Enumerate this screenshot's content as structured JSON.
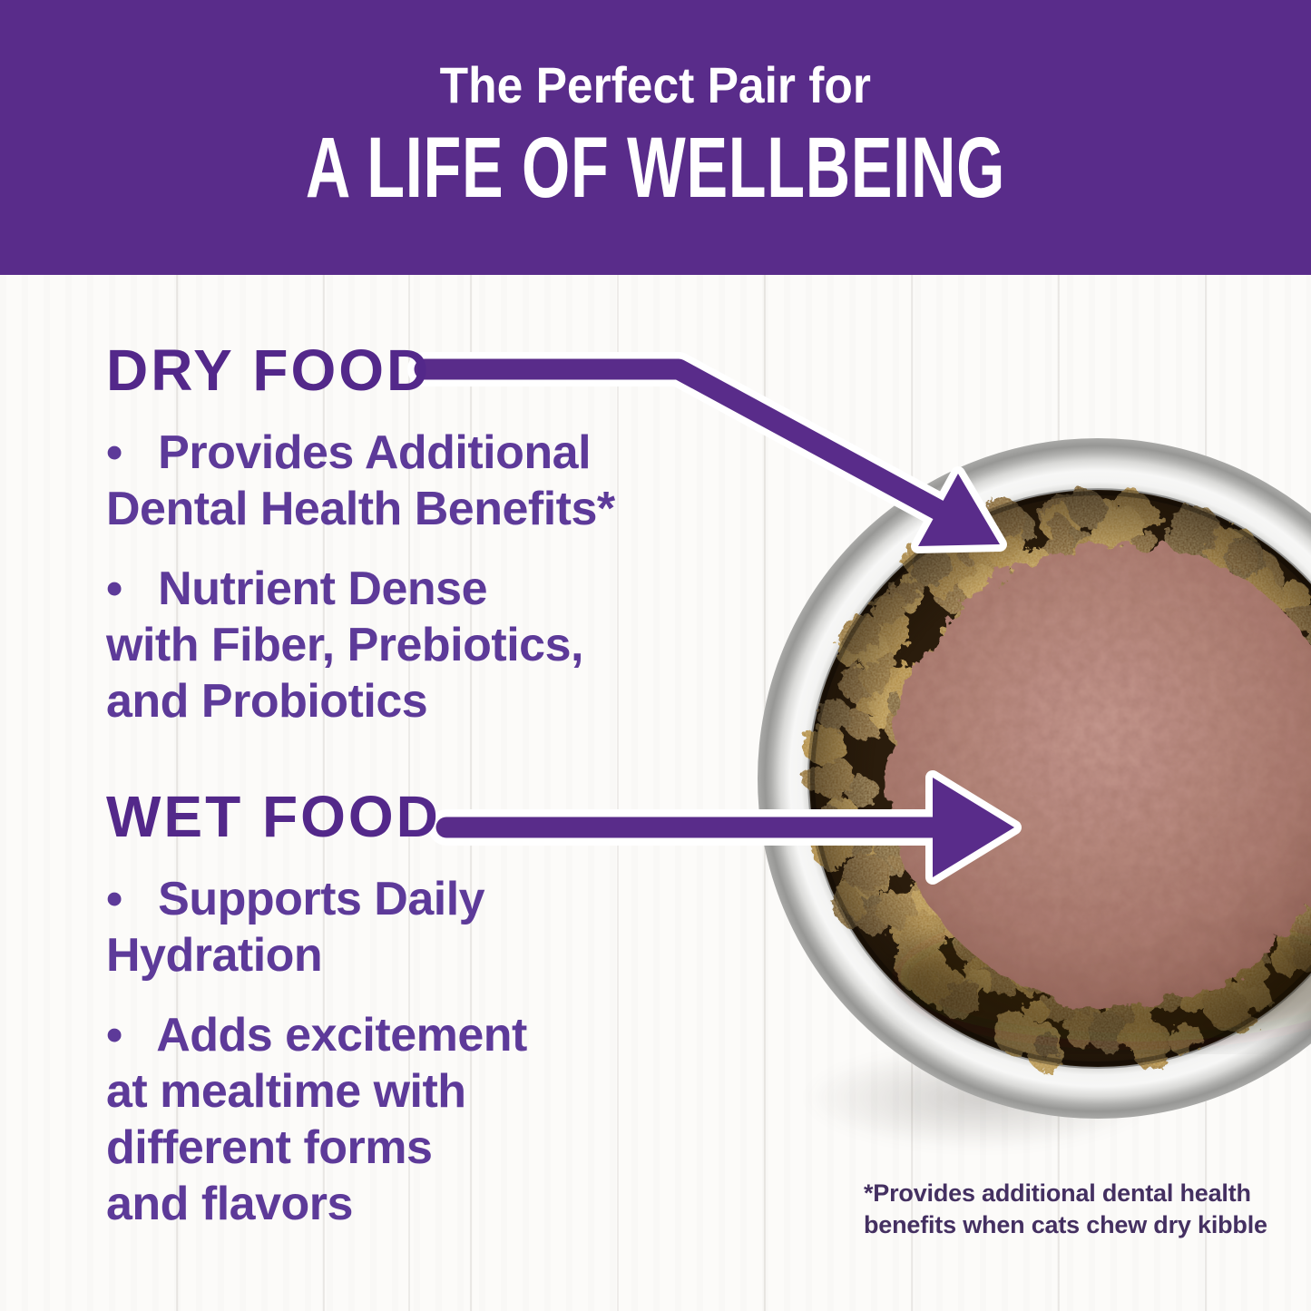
{
  "header": {
    "line1": "The Perfect Pair for",
    "line2": "A LIFE OF WELLBEING"
  },
  "sections": {
    "dry": {
      "title": "DRY FOOD",
      "bullet1": "•  Provides Additional\nDental Health Benefits*",
      "bullet2": "•  Nutrient Dense\nwith Fiber, Prebiotics,\nand Probiotics"
    },
    "wet": {
      "title": "WET FOOD",
      "bullet1": "•  Supports Daily\nHydration",
      "bullet2": "•  Adds excitement\nat mealtime with\ndifferent forms\nand flavors"
    }
  },
  "footnote": "*Provides additional dental health\nbenefits when cats chew dry kibble",
  "photo": {
    "subject": "stainless-steel-bowl-with-dry-kibble-and-wet-pate"
  },
  "colors": {
    "band": "#592c8a",
    "heading": "#53288a",
    "body": "#5d3a99",
    "arrow": "#592c8a",
    "footnote": "#443061",
    "bg": "#fcfbf9",
    "plank": "rgba(125,117,106,0.15)"
  }
}
